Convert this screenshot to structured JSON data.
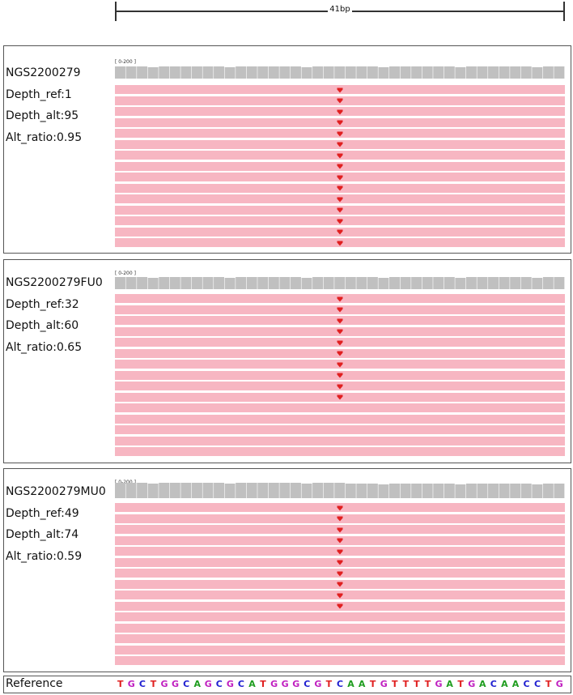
{
  "ruler": {
    "label": "41bp"
  },
  "track_count": 41,
  "variant_index": 20,
  "coverage_scale": "[ 0-200 ]",
  "panels": [
    {
      "name": "NGS2200279",
      "depth_ref": "Depth_ref:1",
      "depth_alt": "Depth_alt:95",
      "alt_ratio": "Alt_ratio:0.95",
      "reads_total": 15,
      "reads_with_variant": 15
    },
    {
      "name": "NGS2200279FU0",
      "depth_ref": "Depth_ref:32",
      "depth_alt": "Depth_alt:60",
      "alt_ratio": "Alt_ratio:0.65",
      "reads_total": 15,
      "reads_with_variant": 10
    },
    {
      "name": "NGS2200279MU0",
      "depth_ref": "Depth_ref:49",
      "depth_alt": "Depth_alt:74",
      "alt_ratio": "Alt_ratio:0.59",
      "reads_total": 15,
      "reads_with_variant": 10
    }
  ],
  "reference": {
    "label": "Reference",
    "sequence": "TGCTGGCAGCGCATGGGCGTCAATGTTTTGATGACAACCTG"
  },
  "colors": {
    "read": "#f7b6c2",
    "coverage": "#c0c0c0",
    "variant": "#e02020",
    "A": "#1f9d1f",
    "C": "#2020d0",
    "G": "#c020c0",
    "T": "#e02020"
  }
}
